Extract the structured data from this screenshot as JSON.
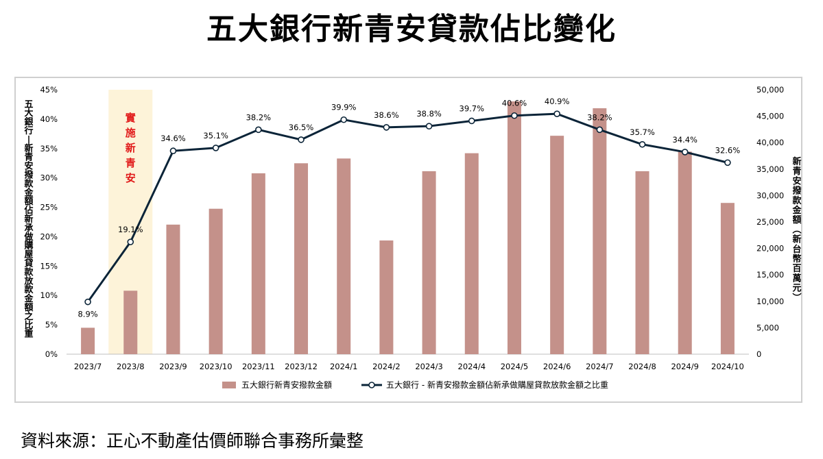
{
  "title": "五大銀行新青安貸款佔比變化",
  "source": "資料來源：正心不動產估價師聯合事務所彙整",
  "colors": {
    "bar": "#c4918a",
    "line": "#0b2438",
    "highlight": "#fdf3d9",
    "annotation": "#e11a1a"
  },
  "chart_data": {
    "type": "bar+line",
    "categories": [
      "2023/7",
      "2023/8",
      "2023/9",
      "2023/10",
      "2023/11",
      "2023/12",
      "2024/1",
      "2024/2",
      "2024/3",
      "2024/4",
      "2024/5",
      "2024/6",
      "2024/7",
      "2024/8",
      "2024/9",
      "2024/10"
    ],
    "series": [
      {
        "name": "五大銀行新青安撥款金額",
        "type": "bar",
        "axis": "right",
        "values": [
          5000,
          12000,
          24500,
          27500,
          34200,
          36100,
          37000,
          21500,
          34600,
          38000,
          47800,
          41300,
          46500,
          34600,
          38300,
          28600
        ]
      },
      {
        "name": "五大銀行 - 新青安撥款金額佔新承做購屋貸款放款金額之比重",
        "type": "line",
        "axis": "left",
        "values": [
          8.9,
          19.1,
          34.6,
          35.1,
          38.2,
          36.5,
          39.9,
          38.6,
          38.8,
          39.7,
          40.6,
          40.9,
          38.2,
          35.7,
          34.4,
          32.6
        ],
        "labels": [
          "8.9%",
          "19.1%",
          "34.6%",
          "35.1%",
          "38.2%",
          "36.5%",
          "39.9%",
          "38.6%",
          "38.8%",
          "39.7%",
          "40.6%",
          "40.9%",
          "38.2%",
          "35.7%",
          "34.4%",
          "32.6%"
        ]
      }
    ],
    "y_left": {
      "label": "五大銀行-新青安撥款金額佔新承做購屋貸款放款金額之比重",
      "ylim": [
        0,
        45
      ],
      "ticks": [
        "0%",
        "5%",
        "10%",
        "15%",
        "20%",
        "25%",
        "30%",
        "35%",
        "40%",
        "45%"
      ]
    },
    "y_right": {
      "label": "新青安撥款金額(新台幣百萬元)",
      "ylim": [
        0,
        50000
      ],
      "ticks": [
        "0",
        "5,000",
        "10,000",
        "15,000",
        "20,000",
        "25,000",
        "30,000",
        "35,000",
        "40,000",
        "45,000",
        "50,000"
      ]
    },
    "annotation": {
      "text": "實施新青安",
      "category": "2023/8"
    },
    "legend_position": "bottom"
  }
}
